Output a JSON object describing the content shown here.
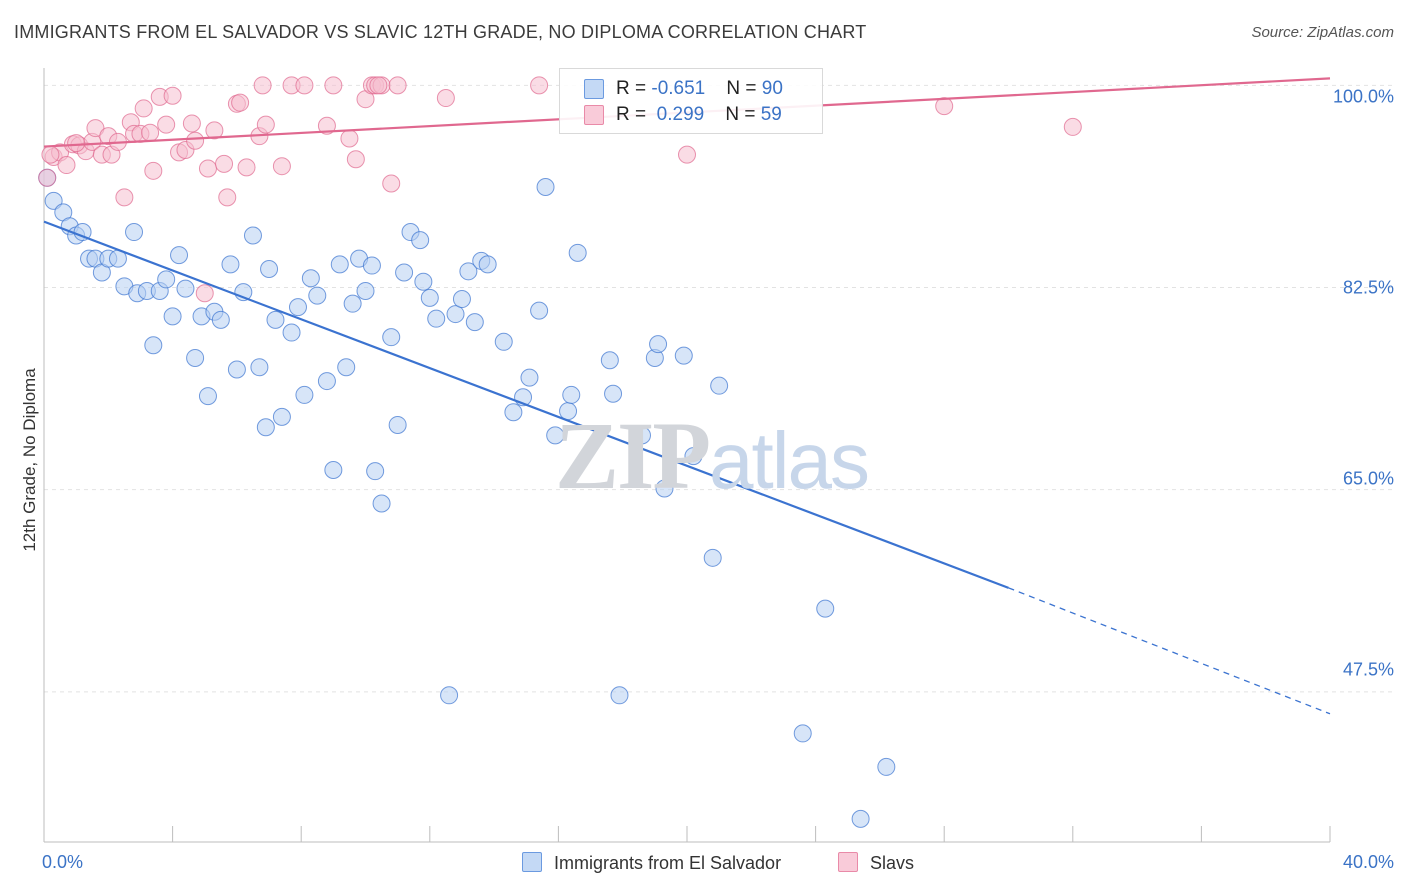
{
  "header": {
    "title": "IMMIGRANTS FROM EL SALVADOR VS SLAVIC 12TH GRADE, NO DIPLOMA CORRELATION CHART",
    "source": "Source: ZipAtlas.com"
  },
  "watermark": {
    "zip": "ZIP",
    "atlas": "atlas"
  },
  "stats_box": {
    "rows": [
      {
        "r_label": "R = ",
        "r_value": "-0.651",
        "n_label": "N = ",
        "n_value": "90",
        "color": "#a9c8f0"
      },
      {
        "r_label": "R = ",
        "r_value": " 0.299",
        "n_label": "N = ",
        "n_value": "59",
        "color": "#f5b6c9"
      }
    ]
  },
  "legend": {
    "items": [
      {
        "label": "Immigrants from El Salvador",
        "color": "#a9c8f0"
      },
      {
        "label": "Slavs",
        "color": "#f5b6c9"
      }
    ]
  },
  "chart_data": {
    "type": "scatter",
    "title": "IMMIGRANTS FROM EL SALVADOR VS SLAVIC 12TH GRADE, NO DIPLOMA CORRELATION CHART",
    "xlabel": "",
    "ylabel": "12th Grade, No Diploma",
    "xlim": [
      0,
      40
    ],
    "ylim": [
      34.5,
      101.5
    ],
    "x_tick_labels": [
      "0.0%",
      "40.0%"
    ],
    "y_ticks": [
      47.5,
      65.0,
      82.5,
      100.0
    ],
    "y_tick_labels": [
      "47.5%",
      "65.0%",
      "82.5%",
      "100.0%"
    ],
    "grid": true,
    "legend_position": "bottom-center",
    "series": [
      {
        "name": "Immigrants from El Salvador",
        "color": "#3b73d0",
        "fill": "#b7d0f2",
        "trend": {
          "x": [
            0,
            30.0
          ],
          "y": [
            88.2,
            56.5
          ],
          "dashed_to": [
            40.0,
            45.6
          ]
        },
        "points": [
          [
            0.1,
            92.0
          ],
          [
            0.3,
            90.0
          ],
          [
            0.6,
            89.0
          ],
          [
            0.8,
            87.8
          ],
          [
            1.0,
            87.0
          ],
          [
            1.2,
            87.3
          ],
          [
            1.4,
            85.0
          ],
          [
            1.6,
            85.0
          ],
          [
            1.8,
            83.8
          ],
          [
            2.0,
            85.0
          ],
          [
            2.3,
            85.0
          ],
          [
            2.5,
            82.6
          ],
          [
            2.8,
            87.3
          ],
          [
            2.9,
            82.0
          ],
          [
            3.2,
            82.2
          ],
          [
            3.4,
            77.5
          ],
          [
            3.6,
            82.2
          ],
          [
            3.8,
            83.2
          ],
          [
            4.0,
            80.0
          ],
          [
            4.2,
            85.3
          ],
          [
            4.4,
            82.4
          ],
          [
            4.7,
            76.4
          ],
          [
            4.9,
            80.0
          ],
          [
            5.1,
            73.1
          ],
          [
            5.3,
            80.4
          ],
          [
            5.5,
            79.7
          ],
          [
            5.8,
            84.5
          ],
          [
            6.0,
            75.4
          ],
          [
            6.2,
            82.1
          ],
          [
            6.5,
            87.0
          ],
          [
            6.7,
            75.6
          ],
          [
            6.9,
            70.4
          ],
          [
            7.0,
            84.1
          ],
          [
            7.2,
            79.7
          ],
          [
            7.4,
            71.3
          ],
          [
            7.7,
            78.6
          ],
          [
            7.9,
            80.8
          ],
          [
            8.1,
            73.2
          ],
          [
            8.3,
            83.3
          ],
          [
            8.5,
            81.8
          ],
          [
            8.8,
            74.4
          ],
          [
            9.0,
            66.7
          ],
          [
            9.2,
            84.5
          ],
          [
            9.4,
            75.6
          ],
          [
            9.6,
            81.1
          ],
          [
            9.8,
            85.0
          ],
          [
            10.0,
            82.2
          ],
          [
            10.2,
            84.4
          ],
          [
            10.3,
            66.6
          ],
          [
            10.5,
            63.8
          ],
          [
            10.8,
            78.2
          ],
          [
            11.0,
            70.6
          ],
          [
            11.2,
            83.8
          ],
          [
            11.4,
            87.3
          ],
          [
            11.7,
            86.6
          ],
          [
            11.8,
            83.0
          ],
          [
            12.0,
            81.6
          ],
          [
            12.2,
            79.8
          ],
          [
            12.6,
            47.2
          ],
          [
            12.8,
            80.2
          ],
          [
            13.0,
            81.5
          ],
          [
            13.2,
            83.9
          ],
          [
            13.4,
            79.5
          ],
          [
            13.6,
            84.8
          ],
          [
            13.8,
            84.5
          ],
          [
            14.3,
            77.8
          ],
          [
            14.6,
            71.7
          ],
          [
            14.9,
            73.0
          ],
          [
            15.1,
            74.7
          ],
          [
            15.4,
            80.5
          ],
          [
            15.6,
            91.2
          ],
          [
            15.9,
            69.7
          ],
          [
            16.3,
            71.8
          ],
          [
            16.4,
            73.2
          ],
          [
            16.6,
            85.5
          ],
          [
            17.6,
            76.2
          ],
          [
            17.7,
            73.3
          ],
          [
            17.9,
            47.2
          ],
          [
            18.6,
            69.7
          ],
          [
            19.0,
            76.4
          ],
          [
            19.1,
            77.6
          ],
          [
            19.3,
            65.1
          ],
          [
            19.9,
            76.6
          ],
          [
            20.2,
            67.9
          ],
          [
            20.8,
            59.1
          ],
          [
            21.0,
            74.0
          ],
          [
            23.6,
            43.9
          ],
          [
            24.3,
            54.7
          ],
          [
            25.4,
            36.5
          ],
          [
            26.2,
            41.0
          ]
        ]
      },
      {
        "name": "Slavs",
        "color": "#e0688f",
        "fill": "#f6bfd0",
        "trend": {
          "x": [
            0,
            40.0
          ],
          "y": [
            94.7,
            100.6
          ]
        },
        "points": [
          [
            0.1,
            92.0
          ],
          [
            0.3,
            93.8
          ],
          [
            0.5,
            94.2
          ],
          [
            0.7,
            93.1
          ],
          [
            0.9,
            94.9
          ],
          [
            1.1,
            94.8
          ],
          [
            1.3,
            94.3
          ],
          [
            1.5,
            95.1
          ],
          [
            1.6,
            96.3
          ],
          [
            1.8,
            94.0
          ],
          [
            2.0,
            95.6
          ],
          [
            2.1,
            94.0
          ],
          [
            2.3,
            95.1
          ],
          [
            2.5,
            90.3
          ],
          [
            2.7,
            96.8
          ],
          [
            2.8,
            95.8
          ],
          [
            3.0,
            95.8
          ],
          [
            3.1,
            98.0
          ],
          [
            3.3,
            95.9
          ],
          [
            3.4,
            92.6
          ],
          [
            3.6,
            99.0
          ],
          [
            3.8,
            96.6
          ],
          [
            4.0,
            99.1
          ],
          [
            4.2,
            94.2
          ],
          [
            4.4,
            94.4
          ],
          [
            4.6,
            96.7
          ],
          [
            4.7,
            95.2
          ],
          [
            5.0,
            82.0
          ],
          [
            5.1,
            92.8
          ],
          [
            5.3,
            96.1
          ],
          [
            5.6,
            93.2
          ],
          [
            5.7,
            90.3
          ],
          [
            6.0,
            98.4
          ],
          [
            6.1,
            98.5
          ],
          [
            6.3,
            92.9
          ],
          [
            6.7,
            95.6
          ],
          [
            6.9,
            96.6
          ],
          [
            7.4,
            93.0
          ],
          [
            7.7,
            100.0
          ],
          [
            8.1,
            100.0
          ],
          [
            8.8,
            96.5
          ],
          [
            9.0,
            100.0
          ],
          [
            9.5,
            95.4
          ],
          [
            9.7,
            93.6
          ],
          [
            10.0,
            98.8
          ],
          [
            10.2,
            100.0
          ],
          [
            10.3,
            100.0
          ],
          [
            10.5,
            100.0
          ],
          [
            10.8,
            91.5
          ],
          [
            11.0,
            100.0
          ],
          [
            12.5,
            98.9
          ],
          [
            15.4,
            100.0
          ],
          [
            20.0,
            94.0
          ],
          [
            28.0,
            98.2
          ],
          [
            32.0,
            96.4
          ],
          [
            0.2,
            94.0
          ],
          [
            1.0,
            95.0
          ],
          [
            6.8,
            100.0
          ],
          [
            10.4,
            100.0
          ]
        ]
      }
    ]
  }
}
